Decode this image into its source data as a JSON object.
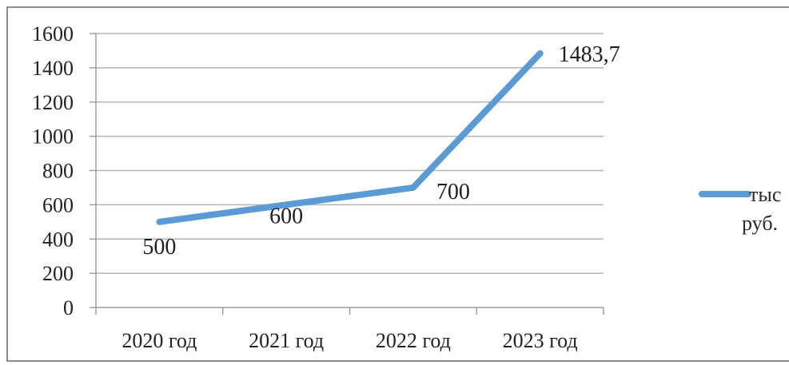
{
  "chart_data": {
    "type": "line",
    "categories": [
      "2020 год",
      "2021 год",
      "2022 год",
      "2023 год"
    ],
    "series": [
      {
        "name": "тыс руб.",
        "values": [
          500,
          600,
          700,
          1483.7
        ],
        "labels": [
          "500",
          "600",
          "700",
          "1483,7"
        ],
        "color": "#5b9bd5"
      }
    ],
    "ylim": [
      0,
      1600
    ],
    "yticks": [
      0,
      200,
      400,
      600,
      800,
      1000,
      1200,
      1400,
      1600
    ],
    "grid": true,
    "legend": {
      "position": "right",
      "lines": [
        "тыс",
        "руб."
      ]
    }
  }
}
